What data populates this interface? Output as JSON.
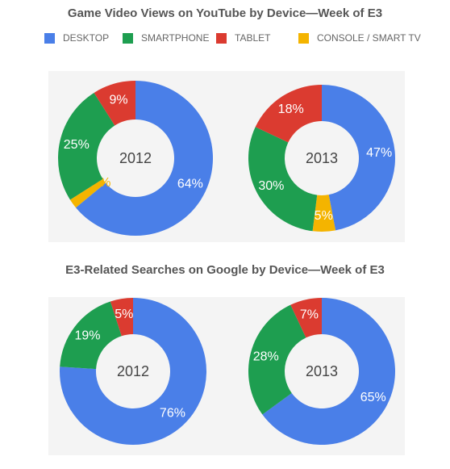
{
  "chart_data": [
    {
      "type": "donut",
      "title": "Game Video Views on YouTube by Device—Week of E3",
      "legend": [
        "DESKTOP",
        "SMARTPHONE",
        "TABLET",
        "CONSOLE / SMART TV"
      ],
      "legend_position": "top",
      "colors": {
        "DESKTOP": "#4a7fe8",
        "SMARTPHONE": "#1e9e50",
        "TABLET": "#db3b30",
        "CONSOLE / SMART TV": "#f4b400"
      },
      "charts": [
        {
          "label": "2012",
          "slices": [
            {
              "name": "DESKTOP",
              "value": 64,
              "label": "64%"
            },
            {
              "name": "CONSOLE / SMART TV",
              "value": 2,
              "label": "2%"
            },
            {
              "name": "SMARTPHONE",
              "value": 25,
              "label": "25%"
            },
            {
              "name": "TABLET",
              "value": 9,
              "label": "9%"
            }
          ]
        },
        {
          "label": "2013",
          "slices": [
            {
              "name": "DESKTOP",
              "value": 47,
              "label": "47%"
            },
            {
              "name": "CONSOLE / SMART TV",
              "value": 5,
              "label": "5%"
            },
            {
              "name": "SMARTPHONE",
              "value": 30,
              "label": "30%"
            },
            {
              "name": "TABLET",
              "value": 18,
              "label": "18%"
            }
          ]
        }
      ]
    },
    {
      "type": "donut",
      "title": "E3-Related Searches on Google by Device—Week of E3",
      "charts": [
        {
          "label": "2012",
          "slices": [
            {
              "name": "DESKTOP",
              "value": 76,
              "label": "76%"
            },
            {
              "name": "SMARTPHONE",
              "value": 19,
              "label": "19%"
            },
            {
              "name": "TABLET",
              "value": 5,
              "label": "5%"
            }
          ]
        },
        {
          "label": "2013",
          "slices": [
            {
              "name": "DESKTOP",
              "value": 65,
              "label": "65%"
            },
            {
              "name": "SMARTPHONE",
              "value": 28,
              "label": "28%"
            },
            {
              "name": "TABLET",
              "value": 7,
              "label": "7%"
            }
          ]
        }
      ]
    }
  ]
}
